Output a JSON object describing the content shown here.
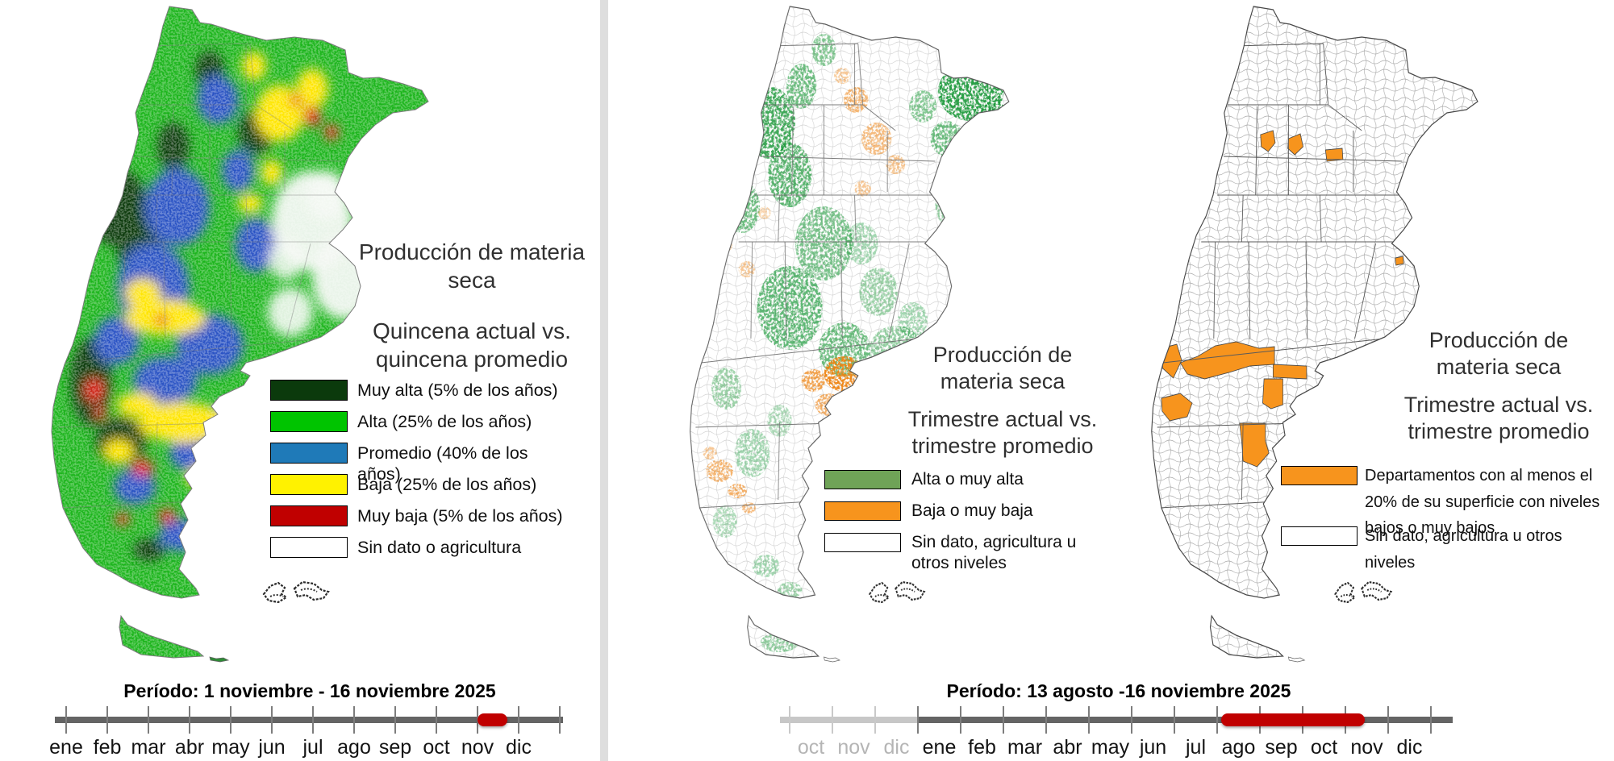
{
  "left_panel": {
    "title_lines": [
      "Producción de materia",
      "seca"
    ],
    "subtitle_lines": [
      "Quincena actual vs.",
      "quincena  promedio"
    ],
    "legend": [
      {
        "label": "Muy alta (5% de los años)",
        "color": "#0B3A0C"
      },
      {
        "label": "Alta (25% de los años)",
        "color": "#00C400"
      },
      {
        "label": "Promedio (40% de los años)",
        "color": "#1F7AB8"
      },
      {
        "label": "Baja (25% de los años)",
        "color": "#FFF200"
      },
      {
        "label": "Muy baja (5% de los años)",
        "color": "#C00000"
      },
      {
        "label": "Sin dato o agricultura",
        "color": "#FFFFFF"
      }
    ],
    "period_label": "Período:  1 noviembre  - 16 noviembre 2025",
    "timeline": {
      "months": [
        "ene",
        "feb",
        "mar",
        "abr",
        "may",
        "jun",
        "jul",
        "ago",
        "sep",
        "oct",
        "nov",
        "dic"
      ],
      "highlight": {
        "from": 10.0,
        "to": 10.72,
        "color": "#C00000",
        "meaning": "1-16 noviembre"
      }
    }
  },
  "middle_panel": {
    "title_lines": [
      "Producción de",
      "materia seca"
    ],
    "subtitle_lines": [
      "Trimestre actual vs.",
      "trimestre promedio"
    ],
    "legend": [
      {
        "label": "Alta o muy alta",
        "color": "#6FA357"
      },
      {
        "label": "Baja o muy baja",
        "color": "#F7941D"
      },
      {
        "label": "Sin dato, agricultura u otros niveles",
        "color": "#FFFFFF"
      }
    ]
  },
  "right_panel": {
    "title_lines": [
      "Producción de",
      "materia seca"
    ],
    "subtitle_lines": [
      "Trimestre actual vs.",
      "trimestre promedio"
    ],
    "legend": [
      {
        "label": "Departamentos con al menos el 20% de su superficie con niveles bajos o muy bajos",
        "color": "#F7941D"
      },
      {
        "label": "Sin dato, agricultura u otros niveles",
        "color": "#FFFFFF"
      }
    ]
  },
  "shared_timeline": {
    "period_label": "Período:  13 agosto -16 noviembre 2025",
    "prev_year_months": [
      "oct",
      "nov",
      "dic"
    ],
    "months": [
      "ene",
      "feb",
      "mar",
      "abr",
      "may",
      "jun",
      "jul",
      "ago",
      "sep",
      "oct",
      "nov",
      "dic"
    ],
    "highlight": {
      "from": 10.1,
      "to": 13.45,
      "color": "#C00000",
      "meaning": "13 agosto - 16 noviembre"
    }
  },
  "map_colors": {
    "raster_base_green": "#1CB51C",
    "raster_dark_green": "#0A3A0C",
    "raster_blue": "#2B52C4",
    "raster_yellow": "#FFE600",
    "raster_red": "#E1251B",
    "trimestre_green": "#1F9A3C",
    "trimestre_orange": "#EE8312",
    "department_orange": "#F7941D"
  },
  "chart_data": [
    {
      "type": "heatmap",
      "title": "Producción de materia seca — Quincena actual vs. quincena promedio",
      "region": "Argentina",
      "classes": [
        {
          "name": "Muy alta",
          "share_of_years": "5%",
          "color": "#0B3A0C"
        },
        {
          "name": "Alta",
          "share_of_years": "25%",
          "color": "#00C400"
        },
        {
          "name": "Promedio",
          "share_of_years": "40%",
          "color": "#1F7AB8"
        },
        {
          "name": "Baja",
          "share_of_years": "25%",
          "color": "#FFF200"
        },
        {
          "name": "Muy baja",
          "share_of_years": "5%",
          "color": "#C00000"
        },
        {
          "name": "Sin dato o agricultura",
          "share_of_years": "",
          "color": "#FFFFFF"
        }
      ],
      "period": "1 noviembre - 16 noviembre 2025"
    },
    {
      "type": "heatmap",
      "title": "Producción de materia seca — Trimestre actual vs. trimestre promedio",
      "region": "Argentina",
      "classes": [
        {
          "name": "Alta o muy alta",
          "color": "#6FA357"
        },
        {
          "name": "Baja o muy baja",
          "color": "#F7941D"
        },
        {
          "name": "Sin dato, agricultura u otros niveles",
          "color": "#FFFFFF"
        }
      ],
      "period": "13 agosto - 16 noviembre 2025"
    },
    {
      "type": "heatmap",
      "title": "Producción de materia seca — Trimestre actual vs. trimestre promedio (departamentos)",
      "region": "Argentina",
      "classes": [
        {
          "name": "Departamentos con al menos el 20% de su superficie con niveles bajos o muy bajos",
          "color": "#F7941D"
        },
        {
          "name": "Sin dato, agricultura u otros niveles",
          "color": "#FFFFFF"
        }
      ],
      "period": "13 agosto - 16 noviembre 2025"
    }
  ]
}
